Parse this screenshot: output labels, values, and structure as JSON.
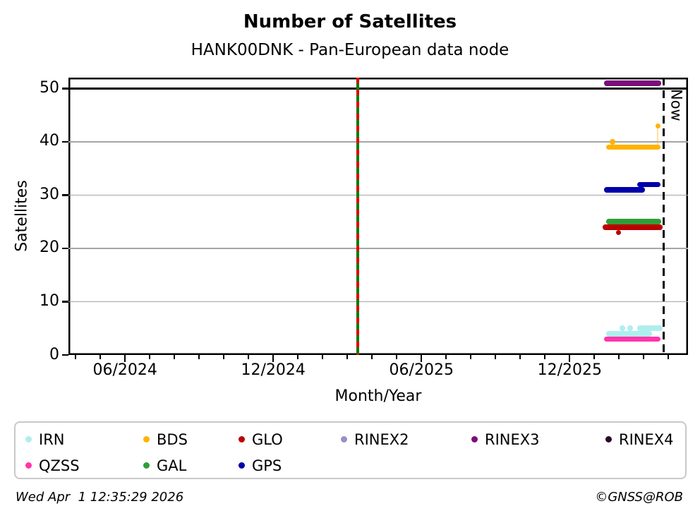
{
  "page": {
    "title": "Number of Satellites",
    "subtitle": "HANK00DNK - Pan-European data node"
  },
  "footer": {
    "timestamp": "Wed Apr  1 12:35:29 2026",
    "credit": "©GNSS@ROB"
  },
  "chart_data": {
    "type": "scatter",
    "title": "Number of Satellites",
    "subtitle": "HANK00DNK - Pan-European data node",
    "xlabel": "Month/Year",
    "ylabel": "Satellites",
    "x_encoding": "months since 2024-01-01 (5 = 2024-06-01, 24.5 = mid Jan 2026)",
    "xlim": [
      2.71,
      27.79
    ],
    "ylim": [
      0,
      52.05
    ],
    "x_major_ticks": [
      {
        "pos": 5,
        "label": "06/2024"
      },
      {
        "pos": 11,
        "label": "12/2024"
      },
      {
        "pos": 17,
        "label": "06/2025"
      },
      {
        "pos": 23,
        "label": "12/2025"
      }
    ],
    "x_minor_tick_step_months": 1,
    "y_ticks": [
      0,
      10,
      20,
      30,
      40,
      50
    ],
    "y_gridlines": [
      10,
      20,
      30,
      40
    ],
    "y_black_rule": 50,
    "grid": "horizontal-only",
    "vertical_marker": {
      "pos": 14.42,
      "desc": "green vertical line with red dashes (mid-March 2025)"
    },
    "now_marker": {
      "pos": 26.8,
      "label": "Now",
      "desc": "black dashed vertical line (Apr 1 2026)"
    },
    "series": [
      {
        "name": "RINEX3",
        "color": "#7C0D7C",
        "segments": [
          {
            "y": 51,
            "x0": 24.51,
            "x1": 26.6
          }
        ],
        "points": [],
        "connectors": []
      },
      {
        "name": "BDS",
        "color": "#FFB300",
        "segments": [
          {
            "y": 39,
            "x0": 24.57,
            "x1": 26.57
          }
        ],
        "points": [
          {
            "y": 40,
            "x": 24.74
          },
          {
            "y": 43,
            "x": 26.57
          }
        ],
        "connectors": [
          {
            "x": 26.57,
            "y0": 39,
            "y1": 43
          }
        ]
      },
      {
        "name": "GPS",
        "color": "#0000AA",
        "segments": [
          {
            "y": 31,
            "x0": 24.51,
            "x1": 25.94
          },
          {
            "y": 32,
            "x0": 25.83,
            "x1": 26.57
          }
        ],
        "points": [],
        "connectors": []
      },
      {
        "name": "GAL",
        "color": "#2F9E38",
        "segments": [
          {
            "y": 25,
            "x0": 24.57,
            "x1": 26.6
          }
        ],
        "points": [],
        "connectors": []
      },
      {
        "name": "GLO",
        "color": "#BB0000",
        "segments": [
          {
            "y": 24,
            "x0": 24.45,
            "x1": 26.66
          }
        ],
        "points": [
          {
            "y": 23,
            "x": 24.97
          }
        ],
        "connectors": []
      },
      {
        "name": "IRN",
        "color": "#AFEEEE",
        "segments": [
          {
            "y": 4,
            "x0": 24.57,
            "x1": 26.17
          },
          {
            "y": 5,
            "x0": 25.83,
            "x1": 26.66
          }
        ],
        "points": [
          {
            "y": 5,
            "x": 25.14
          },
          {
            "y": 5,
            "x": 25.45
          },
          {
            "y": 4,
            "x": 26.23
          }
        ],
        "connectors": []
      },
      {
        "name": "QZSS",
        "color": "#FF35AC",
        "segments": [
          {
            "y": 3,
            "x0": 24.51,
            "x1": 26.57
          }
        ],
        "points": [],
        "connectors": []
      }
    ],
    "legend": [
      {
        "label": "IRN",
        "color": "#AFEEEE"
      },
      {
        "label": "BDS",
        "color": "#FFB300"
      },
      {
        "label": "GLO",
        "color": "#BB0000"
      },
      {
        "label": "RINEX2",
        "color": "#9C8DC9"
      },
      {
        "label": "RINEX3",
        "color": "#7C0D7C"
      },
      {
        "label": "RINEX4",
        "color": "#270B26"
      },
      {
        "label": "QZSS",
        "color": "#FF35AC"
      },
      {
        "label": "GAL",
        "color": "#2F9E38"
      },
      {
        "label": "GPS",
        "color": "#0000AA"
      }
    ],
    "legend_position": "bottom",
    "colors": {
      "gridline": "#A5A5A5",
      "frame": "#000000",
      "marker_green": "#007F00",
      "marker_red": "#E00000",
      "now_line": "#000000"
    }
  }
}
